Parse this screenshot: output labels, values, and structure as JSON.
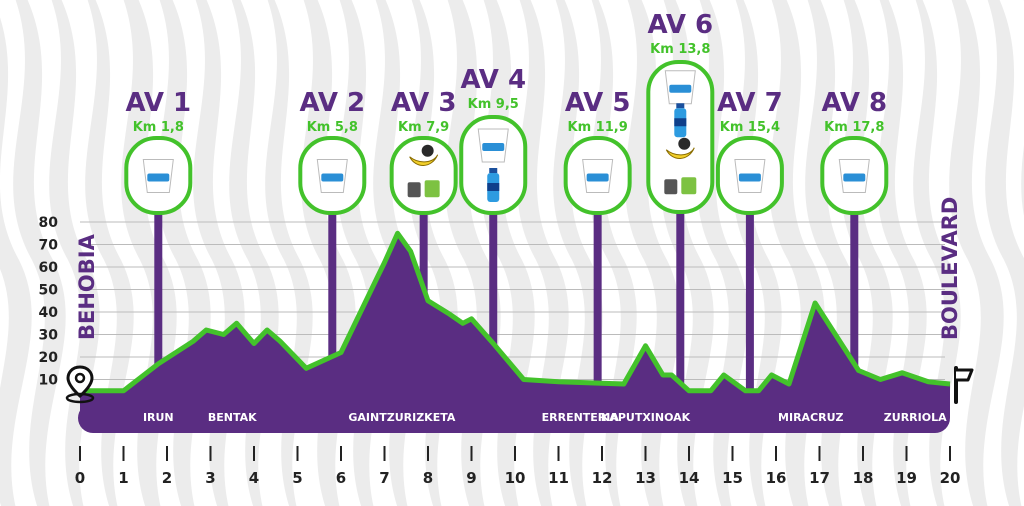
{
  "start_label": "BEHOBIA",
  "end_label": "BOULEVARD",
  "places": [
    {
      "name": "IRUN",
      "km": 1.8
    },
    {
      "name": "BENTAK",
      "km": 3.5
    },
    {
      "name": "GAINTZURIZKETA",
      "km": 7.4
    },
    {
      "name": "ERRENTERIA",
      "km": 11.5
    },
    {
      "name": "KAPUTXINOAK",
      "km": 13.0
    },
    {
      "name": "MIRACRUZ",
      "km": 16.8
    },
    {
      "name": "ZURRIOLA",
      "km": 19.2
    }
  ],
  "aid_stations": [
    {
      "label": "AV 1",
      "km_text": "Km 1,8",
      "km": 1.8,
      "items": [
        "cup-icon"
      ]
    },
    {
      "label": "AV 2",
      "km_text": "Km 5,8",
      "km": 5.8,
      "items": [
        "cup-icon"
      ]
    },
    {
      "label": "AV 3",
      "km_text": "Km 7,9",
      "km": 7.9,
      "items": [
        "banana-icon",
        "gel-icon"
      ]
    },
    {
      "label": "AV 4",
      "km_text": "Km 9,5",
      "km": 9.5,
      "items": [
        "cup-icon",
        "bottle-icon"
      ]
    },
    {
      "label": "AV 5",
      "km_text": "Km 11,9",
      "km": 11.9,
      "items": [
        "cup-icon"
      ]
    },
    {
      "label": "AV 6",
      "km_text": "Km 13,8",
      "km": 13.8,
      "items": [
        "cup-icon",
        "bottle-icon",
        "banana-icon",
        "gel-icon"
      ]
    },
    {
      "label": "AV 7",
      "km_text": "Km 15,4",
      "km": 15.4,
      "items": [
        "cup-icon"
      ]
    },
    {
      "label": "AV 8",
      "km_text": "Km 17,8",
      "km": 17.8,
      "items": [
        "cup-icon"
      ]
    }
  ],
  "colors": {
    "purple": "#5a2d82",
    "green": "#43c22b",
    "grid": "#bbbbbb",
    "stripe": "#ececec"
  },
  "chart_data": {
    "type": "area",
    "x_unit": "km",
    "y_unit": "m",
    "xlim": [
      0,
      20
    ],
    "ylim": [
      0,
      80
    ],
    "x_ticks": [
      0,
      1,
      2,
      3,
      4,
      5,
      6,
      7,
      8,
      9,
      10,
      11,
      12,
      13,
      14,
      15,
      16,
      17,
      18,
      19,
      20
    ],
    "y_ticks": [
      10,
      20,
      30,
      40,
      50,
      60,
      70,
      80
    ],
    "grid": true,
    "profile": [
      [
        0,
        5
      ],
      [
        1,
        5
      ],
      [
        1.8,
        17
      ],
      [
        2.6,
        27
      ],
      [
        2.9,
        32
      ],
      [
        3.3,
        30
      ],
      [
        3.6,
        35
      ],
      [
        4.0,
        26
      ],
      [
        4.2,
        30
      ],
      [
        4.3,
        32
      ],
      [
        4.6,
        27
      ],
      [
        5.2,
        15
      ],
      [
        6.0,
        22
      ],
      [
        7.0,
        62
      ],
      [
        7.3,
        75
      ],
      [
        7.6,
        67
      ],
      [
        8.0,
        45
      ],
      [
        8.5,
        39
      ],
      [
        8.8,
        35
      ],
      [
        9.0,
        37
      ],
      [
        9.5,
        26
      ],
      [
        10.2,
        10
      ],
      [
        11.0,
        9
      ],
      [
        12.5,
        8
      ],
      [
        13.0,
        25
      ],
      [
        13.4,
        12
      ],
      [
        13.6,
        12
      ],
      [
        14.0,
        5
      ],
      [
        14.5,
        5
      ],
      [
        14.8,
        12
      ],
      [
        15.3,
        5
      ],
      [
        15.6,
        5
      ],
      [
        15.9,
        12
      ],
      [
        16.3,
        8
      ],
      [
        16.9,
        44
      ],
      [
        17.9,
        14
      ],
      [
        18.4,
        10
      ],
      [
        18.9,
        13
      ],
      [
        19.5,
        9
      ],
      [
        20.0,
        8
      ]
    ]
  }
}
